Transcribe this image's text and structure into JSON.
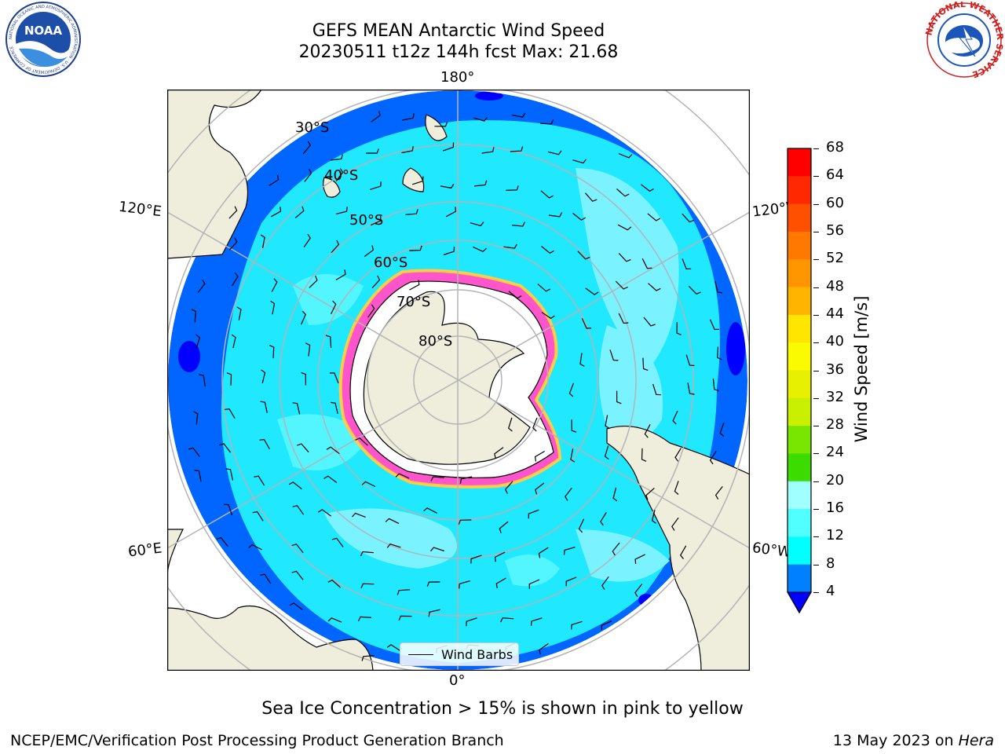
{
  "title": {
    "line1": "GEFS MEAN Antarctic Wind Speed",
    "line2": "20230511 t12z 144h fcst   Max: 21.68"
  },
  "longitude_labels": {
    "top": "180°",
    "bottom": "0°",
    "upper_left": "120°E",
    "upper_right": "120°W",
    "lower_left": "60°E",
    "lower_right": "60°W"
  },
  "latitude_labels": [
    "30°S",
    "40°S",
    "50°S",
    "60°S",
    "70°S",
    "80°S"
  ],
  "colorbar": {
    "label": "Wind Speed [m/s]",
    "ticks": [
      "68",
      "64",
      "60",
      "56",
      "52",
      "48",
      "44",
      "40",
      "36",
      "32",
      "28",
      "24",
      "20",
      "16",
      "12",
      "8",
      "4"
    ],
    "colors_top_to_bottom": [
      "#ff0000",
      "#ff2800",
      "#ff5000",
      "#ff7800",
      "#ff9600",
      "#ffb400",
      "#ffe600",
      "#fafa00",
      "#e6f000",
      "#c8f000",
      "#78e600",
      "#3cdc00",
      "#00d200",
      "#50f078",
      "#a0ffff",
      "#50ffff",
      "#00ffff",
      "#0080ff"
    ],
    "extend_color": "#0000ff"
  },
  "legend": {
    "label": "Wind Barbs"
  },
  "caption": "Sea Ice Concentration > 15% is shown in pink to yellow",
  "footer": {
    "left": "NCEP/EMC/Verification Post Processing Product Generation Branch",
    "date": "13 May 2023 on ",
    "machine": "Hera"
  },
  "logos": {
    "noaa_text": "NOAA",
    "noaa_ring": "NATIONAL OCEANIC AND ATMOSPHERIC ADMINISTRATION · U.S. DEPARTMENT OF COMMERCE",
    "nws_ring": "NATIONAL WEATHER SERVICE"
  },
  "colors": {
    "land": "#efeddb",
    "ocean_outer": "#0066ff",
    "ocean_mid": "#1fe8ff",
    "ocean_inner": "#7af2ff",
    "sea_ice": "#ff55cc",
    "grid": "#b4b4b4"
  }
}
